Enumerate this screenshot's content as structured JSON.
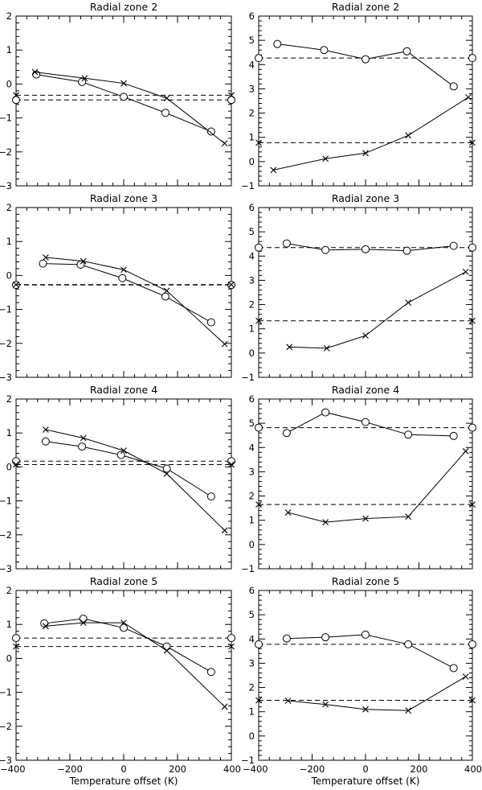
{
  "chart_data": [
    {
      "type": "line",
      "title": "Radial zone 2",
      "xlabel": "",
      "ylabel": "",
      "xlim": [
        -400,
        400
      ],
      "ylim": [
        -3,
        2
      ],
      "xticks": [],
      "yticks": [
        -3,
        -2,
        -1,
        0,
        1,
        2
      ],
      "ytick_labels": [
        "−3",
        "−2",
        "−1",
        "0",
        "1",
        "2"
      ],
      "series": [
        {
          "name": "circle",
          "marker": "circle",
          "x": [
            -325,
            -155,
            0,
            155,
            325
          ],
          "y": [
            0.28,
            0.06,
            -0.38,
            -0.85,
            -1.4
          ]
        },
        {
          "name": "cross",
          "marker": "x",
          "x": [
            -330,
            -145,
            0,
            160,
            375
          ],
          "y": [
            0.35,
            0.17,
            0.02,
            -0.42,
            -1.75
          ]
        }
      ],
      "reference_lines": [
        {
          "marker": "circle",
          "y": -0.47
        },
        {
          "marker": "x",
          "y": -0.33
        }
      ]
    },
    {
      "type": "line",
      "title": "Radial zone 2",
      "xlabel": "",
      "ylabel": "",
      "xlim": [
        -400,
        400
      ],
      "ylim": [
        -1,
        6
      ],
      "xticks": [],
      "yticks": [
        -1,
        0,
        1,
        2,
        3,
        4,
        5,
        6
      ],
      "ytick_labels": [
        "−1",
        "0",
        "1",
        "2",
        "3",
        "4",
        "5",
        "6"
      ],
      "series": [
        {
          "name": "circle",
          "marker": "circle",
          "x": [
            -330,
            -155,
            0,
            155,
            330
          ],
          "y": [
            4.85,
            4.6,
            4.22,
            4.55,
            3.1
          ]
        },
        {
          "name": "cross",
          "marker": "x",
          "x": [
            -345,
            -150,
            0,
            160,
            385
          ],
          "y": [
            -0.35,
            0.12,
            0.35,
            1.08,
            2.65
          ]
        }
      ],
      "reference_lines": [
        {
          "marker": "circle",
          "y": 4.27
        },
        {
          "marker": "x",
          "y": 0.78
        }
      ]
    },
    {
      "type": "line",
      "title": "Radial zone 3",
      "xlabel": "",
      "ylabel": "",
      "xlim": [
        -400,
        400
      ],
      "ylim": [
        -3,
        2
      ],
      "xticks": [],
      "yticks": [
        -3,
        -2,
        -1,
        0,
        1,
        2
      ],
      "ytick_labels": [
        "−3",
        "−2",
        "−1",
        "0",
        "1",
        "2"
      ],
      "series": [
        {
          "name": "circle",
          "marker": "circle",
          "x": [
            -300,
            -160,
            -5,
            155,
            325
          ],
          "y": [
            0.35,
            0.32,
            -0.08,
            -0.62,
            -1.38
          ]
        },
        {
          "name": "cross",
          "marker": "x",
          "x": [
            -290,
            -150,
            0,
            160,
            375
          ],
          "y": [
            0.53,
            0.42,
            0.17,
            -0.45,
            -2.02
          ]
        }
      ],
      "reference_lines": [
        {
          "marker": "circle",
          "y": -0.28
        },
        {
          "marker": "x",
          "y": -0.27
        }
      ]
    },
    {
      "type": "line",
      "title": "Radial zone 3",
      "xlabel": "",
      "ylabel": "",
      "xlim": [
        -400,
        400
      ],
      "ylim": [
        -1,
        6
      ],
      "xticks": [],
      "yticks": [
        -1,
        0,
        1,
        2,
        3,
        4,
        5,
        6
      ],
      "ytick_labels": [
        "−1",
        "0",
        "1",
        "2",
        "3",
        "4",
        "5",
        "6"
      ],
      "series": [
        {
          "name": "circle",
          "marker": "circle",
          "x": [
            -295,
            -150,
            0,
            155,
            330
          ],
          "y": [
            4.52,
            4.25,
            4.28,
            4.22,
            4.42
          ]
        },
        {
          "name": "cross",
          "marker": "x",
          "x": [
            -285,
            -145,
            0,
            160,
            375
          ],
          "y": [
            0.25,
            0.2,
            0.72,
            2.08,
            3.35
          ]
        }
      ],
      "reference_lines": [
        {
          "marker": "circle",
          "y": 4.35
        },
        {
          "marker": "x",
          "y": 1.33
        }
      ]
    },
    {
      "type": "line",
      "title": "Radial zone 4",
      "xlabel": "",
      "ylabel": "",
      "xlim": [
        -400,
        400
      ],
      "ylim": [
        -3,
        2
      ],
      "xticks": [],
      "yticks": [
        -3,
        -2,
        -1,
        0,
        1,
        2
      ],
      "ytick_labels": [
        "−3",
        "−2",
        "−1",
        "0",
        "1",
        "2"
      ],
      "series": [
        {
          "name": "circle",
          "marker": "circle",
          "x": [
            -290,
            -155,
            -10,
            160,
            325
          ],
          "y": [
            0.75,
            0.6,
            0.35,
            -0.05,
            -0.87
          ]
        },
        {
          "name": "cross",
          "marker": "x",
          "x": [
            -290,
            -150,
            0,
            160,
            375
          ],
          "y": [
            1.1,
            0.85,
            0.48,
            -0.2,
            -1.87
          ]
        }
      ],
      "reference_lines": [
        {
          "marker": "circle",
          "y": 0.17
        },
        {
          "marker": "x",
          "y": 0.07
        }
      ]
    },
    {
      "type": "line",
      "title": "Radial zone 4",
      "xlabel": "",
      "ylabel": "",
      "xlim": [
        -400,
        400
      ],
      "ylim": [
        -1,
        6
      ],
      "xticks": [],
      "yticks": [
        -1,
        0,
        1,
        2,
        3,
        4,
        5,
        6
      ],
      "ytick_labels": [
        "−1",
        "0",
        "1",
        "2",
        "3",
        "4",
        "5",
        "6"
      ],
      "series": [
        {
          "name": "circle",
          "marker": "circle",
          "x": [
            -295,
            -150,
            0,
            160,
            330
          ],
          "y": [
            4.6,
            5.45,
            5.05,
            4.53,
            4.48
          ]
        },
        {
          "name": "cross",
          "marker": "x",
          "x": [
            -290,
            -150,
            0,
            160,
            375
          ],
          "y": [
            1.32,
            0.92,
            1.07,
            1.15,
            3.85
          ]
        }
      ],
      "reference_lines": [
        {
          "marker": "circle",
          "y": 4.82
        },
        {
          "marker": "x",
          "y": 1.65
        }
      ]
    },
    {
      "type": "line",
      "title": "Radial zone 5",
      "xlabel": "Temperature offset (K)",
      "ylabel": "",
      "xlim": [
        -400,
        400
      ],
      "ylim": [
        -3,
        2
      ],
      "xticks": [
        -400,
        -200,
        0,
        200,
        400
      ],
      "xtick_labels": [
        "−400",
        "−200",
        "0",
        "200",
        "400"
      ],
      "yticks": [
        -3,
        -2,
        -1,
        0,
        1,
        2
      ],
      "ytick_labels": [
        "−3",
        "−2",
        "−1",
        "0",
        "1",
        "2"
      ],
      "series": [
        {
          "name": "circle",
          "marker": "circle",
          "x": [
            -295,
            -150,
            0,
            160,
            325
          ],
          "y": [
            1.03,
            1.17,
            0.9,
            0.35,
            -0.4
          ]
        },
        {
          "name": "cross",
          "marker": "x",
          "x": [
            -290,
            -150,
            0,
            160,
            375
          ],
          "y": [
            0.95,
            1.05,
            1.05,
            0.23,
            -1.42
          ]
        }
      ],
      "reference_lines": [
        {
          "marker": "circle",
          "y": 0.6
        },
        {
          "marker": "x",
          "y": 0.35
        }
      ]
    },
    {
      "type": "line",
      "title": "Radial zone 5",
      "xlabel": "Temperature offset (K)",
      "ylabel": "",
      "xlim": [
        -400,
        400
      ],
      "ylim": [
        -1,
        6
      ],
      "xticks": [
        -400,
        -200,
        0,
        200,
        400
      ],
      "xtick_labels": [
        "−400",
        "−200",
        "0",
        "200",
        "400"
      ],
      "yticks": [
        -1,
        0,
        1,
        2,
        3,
        4,
        5,
        6
      ],
      "ytick_labels": [
        "−1",
        "0",
        "1",
        "2",
        "3",
        "4",
        "5",
        "6"
      ],
      "series": [
        {
          "name": "circle",
          "marker": "circle",
          "x": [
            -295,
            -150,
            0,
            160,
            330
          ],
          "y": [
            4.02,
            4.07,
            4.18,
            3.78,
            2.8
          ]
        },
        {
          "name": "cross",
          "marker": "x",
          "x": [
            -290,
            -150,
            0,
            160,
            375
          ],
          "y": [
            1.45,
            1.3,
            1.1,
            1.05,
            2.45
          ]
        }
      ],
      "reference_lines": [
        {
          "marker": "circle",
          "y": 3.78
        },
        {
          "marker": "x",
          "y": 1.47
        }
      ]
    }
  ]
}
